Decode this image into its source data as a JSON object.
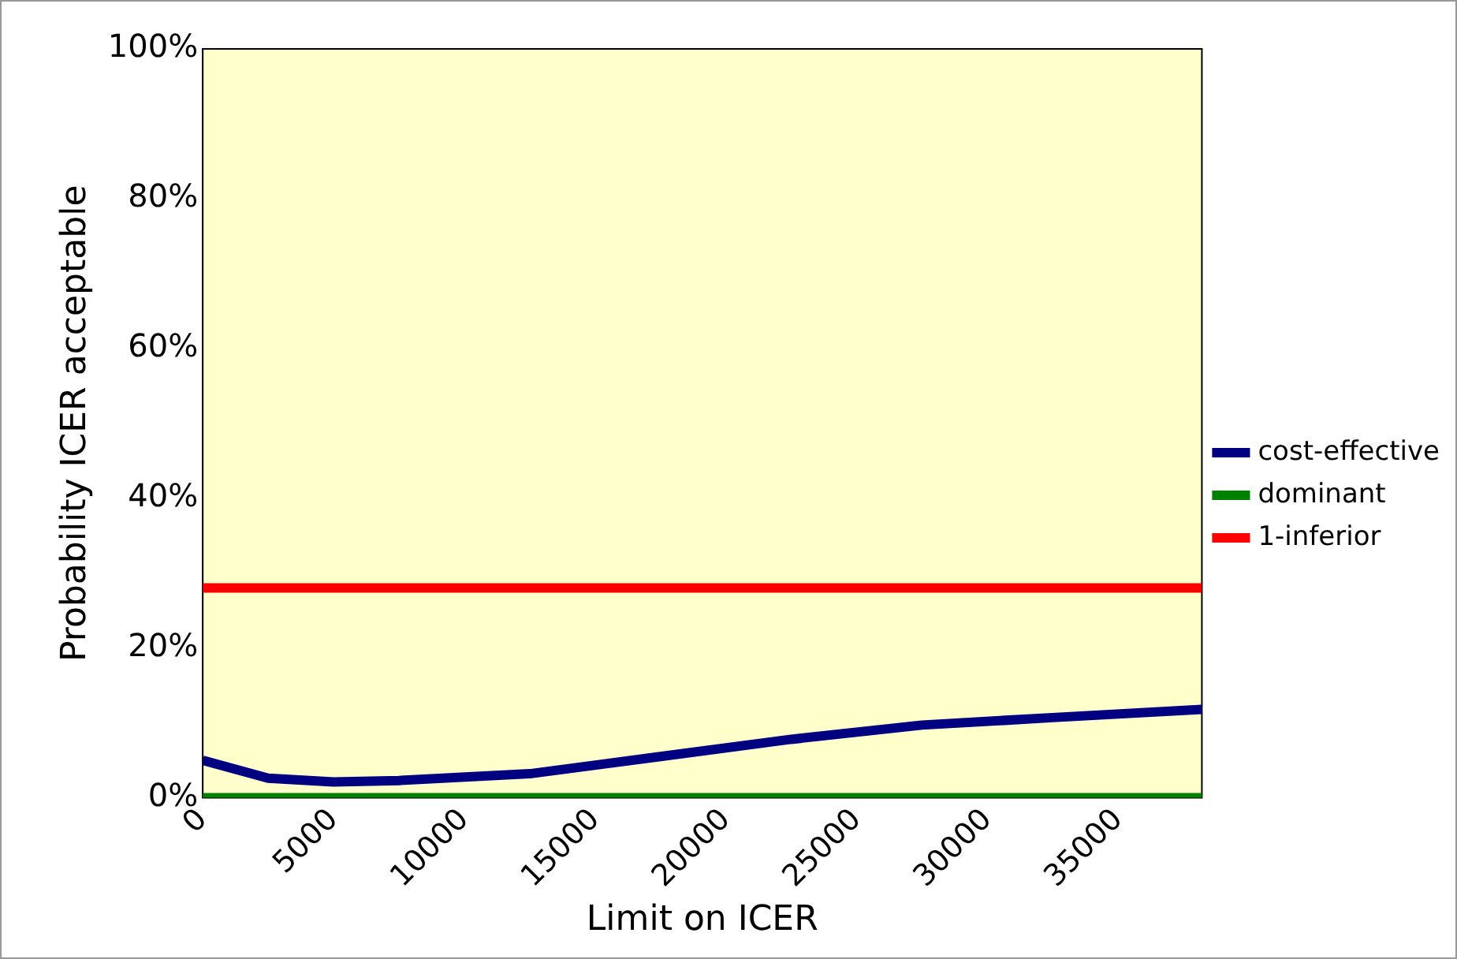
{
  "chart_data": {
    "type": "line",
    "xlabel": "Limit on ICER",
    "ylabel": "Probability ICER acceptable",
    "xlim": [
      0,
      38200
    ],
    "xticks": [
      0,
      5000,
      10000,
      15000,
      20000,
      25000,
      30000,
      35000
    ],
    "ylim": [
      0,
      100
    ],
    "yticks": [
      {
        "value": 0,
        "label": "0%"
      },
      {
        "value": 20,
        "label": "20%"
      },
      {
        "value": 40,
        "label": "40%"
      },
      {
        "value": 60,
        "label": "60%"
      },
      {
        "value": 80,
        "label": "80%"
      },
      {
        "value": 100,
        "label": "100%"
      }
    ],
    "series": [
      {
        "name": "cost-effective",
        "color": "#000080",
        "x": [
          0,
          2500,
          5000,
          7500,
          12500,
          17500,
          22500,
          27500,
          32500,
          38200
        ],
        "values": [
          5,
          2.6,
          2.1,
          2.3,
          3.2,
          5.5,
          7.8,
          9.7,
          10.7,
          11.8
        ]
      },
      {
        "name": "dominant",
        "color": "#008000",
        "x": [
          0,
          38200
        ],
        "values": [
          0,
          0
        ]
      },
      {
        "name": "1-inferior",
        "color": "#ff0000",
        "x": [
          0,
          38200
        ],
        "values": [
          28,
          28
        ]
      }
    ],
    "legend": "right",
    "grid": false,
    "marker": "none",
    "line_style": "solid"
  }
}
